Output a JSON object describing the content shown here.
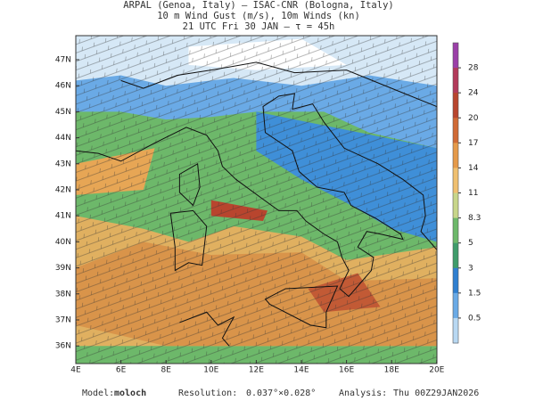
{
  "header": {
    "line1": "ARPAL (Genoa, Italy)  —  ISAC-CNR (Bologna, Italy)",
    "line2": "10 m Wind Gust (m/s), 10m Winds (kn)",
    "line3": "21 UTC Fri 30 JAN  —  τ = 45h"
  },
  "map": {
    "lat_labels": [
      "47N",
      "46N",
      "45N",
      "44N",
      "43N",
      "42N",
      "41N",
      "40N",
      "39N",
      "38N",
      "37N",
      "36N"
    ],
    "lon_labels": [
      "4E",
      "6E",
      "8E",
      "10E",
      "12E",
      "14E",
      "16E",
      "18E",
      "20E"
    ]
  },
  "colorbar": {
    "ticks": [
      28,
      24,
      20,
      17,
      14,
      11,
      8.3,
      5,
      3,
      1.5,
      0.5
    ],
    "colors": [
      "#9b3fa8",
      "#b23a5a",
      "#b8452e",
      "#d06a35",
      "#e59a4a",
      "#f0c070",
      "#c8d68a",
      "#6db86a",
      "#3f9c6b",
      "#2f7fd0",
      "#6aaae6",
      "#b8d8f2"
    ]
  },
  "footer": {
    "model_label": "Model:",
    "model": "moloch",
    "resolution_label": "Resolution:",
    "resolution": "0.037°×0.028°",
    "analysis_label": "Analysis:",
    "analysis": "Thu 00Z29JAN2026"
  }
}
